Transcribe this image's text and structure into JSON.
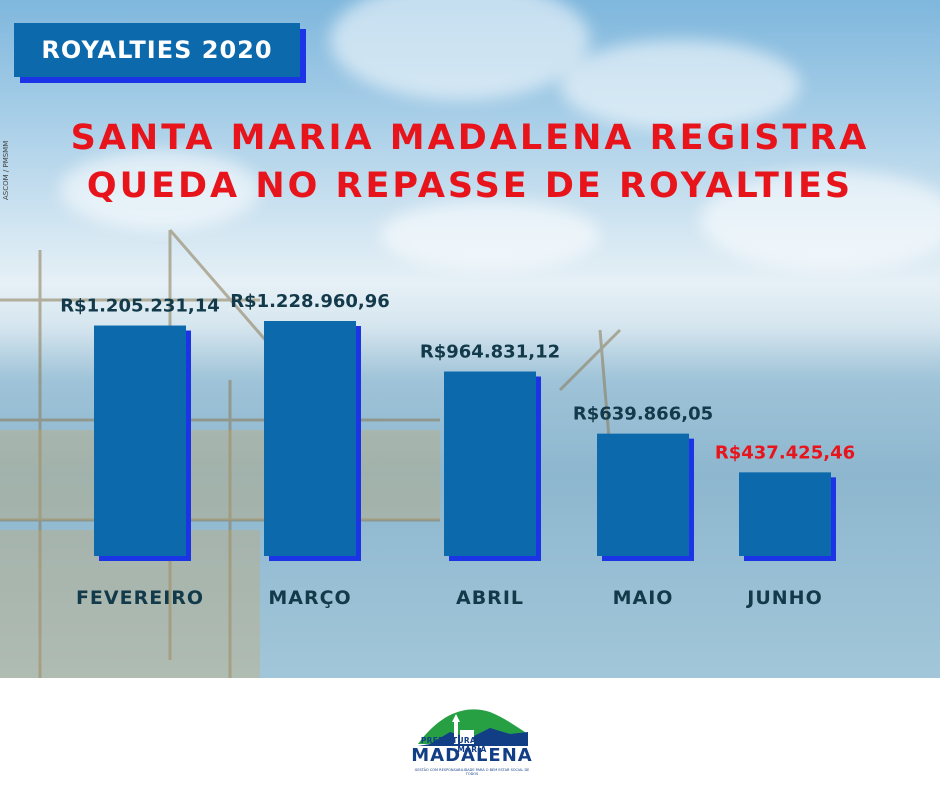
{
  "badge": {
    "label": "ROYALTIES 2020"
  },
  "photo_credit": "ASCOM / PMSMM",
  "headline": {
    "line1": "SANTA MARIA MADALENA REGISTRA",
    "line2": "QUEDA NO REPASSE DE ROYALTIES"
  },
  "colors": {
    "bar": "#0b69ac",
    "bar_shadow": "#1b34e6",
    "value_label": "#123a4a",
    "highlight_label": "#e8141c",
    "headline": "#e8141c"
  },
  "chart_data": {
    "type": "bar",
    "title": "",
    "xlabel": "",
    "ylabel": "",
    "categories": [
      "FEVEREIRO",
      "MARÇO",
      "ABRIL",
      "MAIO",
      "JUNHO"
    ],
    "values": [
      1205231.14,
      1228960.96,
      964831.12,
      639866.05,
      437425.46
    ],
    "value_labels": [
      "R$1.205.231,14",
      "R$1.228.960,96",
      "R$964.831,12",
      "R$639.866,05",
      "R$437.425,46"
    ],
    "highlight_index": 4,
    "ylim": [
      0,
      1500000
    ],
    "grid": false,
    "legend": "none"
  },
  "logo": {
    "line1": "PREFEITURA DE SANTA MARIA",
    "line2": "MADALENA",
    "line3": "GESTÃO COM RESPONSABILIDADE PARA O BEM ESTAR SOCIAL DE TODOS"
  }
}
